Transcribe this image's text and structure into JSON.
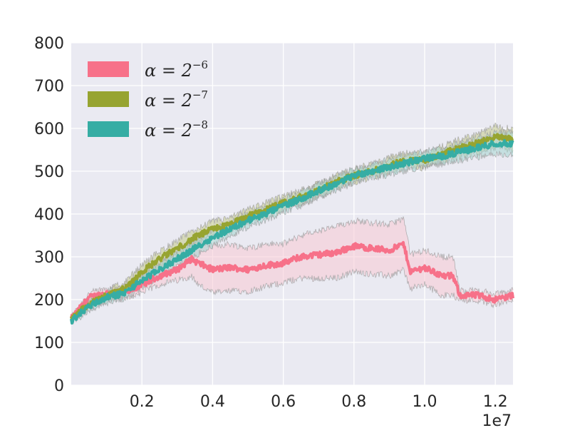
{
  "chart_data": {
    "type": "line",
    "title": "",
    "xlabel": "",
    "ylabel": "",
    "x_offset_label": "1e7",
    "x_multiplier": 10000000,
    "xlim": [
      0,
      12500000
    ],
    "ylim": [
      0,
      800
    ],
    "x_ticks": [
      2000000,
      4000000,
      6000000,
      8000000,
      10000000,
      12000000
    ],
    "x_tick_labels": [
      "0.2",
      "0.4",
      "0.6",
      "0.8",
      "1.0",
      "1.2"
    ],
    "y_ticks": [
      0,
      100,
      200,
      300,
      400,
      500,
      600,
      700,
      800
    ],
    "y_tick_labels": [
      "0",
      "100",
      "200",
      "300",
      "400",
      "500",
      "600",
      "700",
      "800"
    ],
    "grid": true,
    "background": "#eaeaf2",
    "legend_position": "top-left",
    "series": [
      {
        "name": "α = 2^-6",
        "legend_base": "α = 2",
        "legend_exp": "−6",
        "color": "#f77189",
        "band_color": "#f7c8d3",
        "x": [
          0,
          500000,
          1000000,
          1500000,
          2000000,
          2500000,
          3000000,
          3400000,
          3600000,
          4000000,
          4500000,
          5000000,
          5500000,
          6000000,
          6500000,
          7000000,
          7500000,
          8000000,
          8500000,
          9000000,
          9400000,
          9600000,
          10000000,
          10500000,
          10800000,
          11000000,
          11500000,
          12000000,
          12500000
        ],
        "y": [
          155,
          205,
          215,
          215,
          235,
          255,
          270,
          295,
          285,
          270,
          275,
          270,
          280,
          285,
          300,
          305,
          310,
          325,
          320,
          315,
          330,
          265,
          275,
          255,
          255,
          210,
          210,
          200,
          210
        ],
        "band": [
          5,
          10,
          12,
          15,
          18,
          20,
          25,
          40,
          50,
          55,
          55,
          50,
          50,
          45,
          50,
          55,
          60,
          60,
          60,
          60,
          60,
          40,
          40,
          45,
          45,
          10,
          12,
          12,
          12
        ]
      },
      {
        "name": "α = 2^-7",
        "legend_base": "α = 2",
        "legend_exp": "−7",
        "color": "#97a431",
        "band_color": "#c3c98a",
        "x": [
          0,
          500000,
          1000000,
          1500000,
          2000000,
          2500000,
          3000000,
          3500000,
          4000000,
          4500000,
          5000000,
          5500000,
          6000000,
          6500000,
          7000000,
          7500000,
          8000000,
          8500000,
          9000000,
          9500000,
          10000000,
          10500000,
          11000000,
          11500000,
          12000000,
          12500000
        ],
        "y": [
          155,
          190,
          210,
          225,
          265,
          295,
          320,
          345,
          365,
          375,
          395,
          410,
          425,
          440,
          455,
          475,
          490,
          500,
          515,
          525,
          525,
          540,
          555,
          565,
          580,
          575
        ],
        "band": [
          6,
          10,
          12,
          14,
          16,
          18,
          18,
          18,
          18,
          16,
          16,
          16,
          16,
          16,
          16,
          16,
          16,
          16,
          18,
          18,
          18,
          18,
          20,
          22,
          25,
          25
        ]
      },
      {
        "name": "α = 2^-8",
        "legend_base": "α = 2",
        "legend_exp": "−8",
        "color": "#36ada4",
        "band_color": "#a6d6d2",
        "x": [
          0,
          500000,
          1000000,
          1500000,
          2000000,
          2500000,
          3000000,
          3500000,
          4000000,
          4500000,
          5000000,
          5500000,
          6000000,
          6500000,
          7000000,
          7500000,
          8000000,
          8500000,
          9000000,
          9500000,
          10000000,
          10500000,
          11000000,
          11500000,
          12000000,
          12500000
        ],
        "y": [
          150,
          185,
          205,
          215,
          245,
          270,
          295,
          320,
          345,
          365,
          385,
          400,
          420,
          435,
          455,
          470,
          490,
          500,
          510,
          520,
          530,
          535,
          545,
          555,
          565,
          565
        ],
        "band": [
          6,
          10,
          12,
          14,
          16,
          18,
          18,
          18,
          18,
          16,
          16,
          16,
          16,
          16,
          16,
          16,
          16,
          16,
          18,
          18,
          18,
          18,
          20,
          22,
          25,
          25
        ]
      }
    ]
  }
}
